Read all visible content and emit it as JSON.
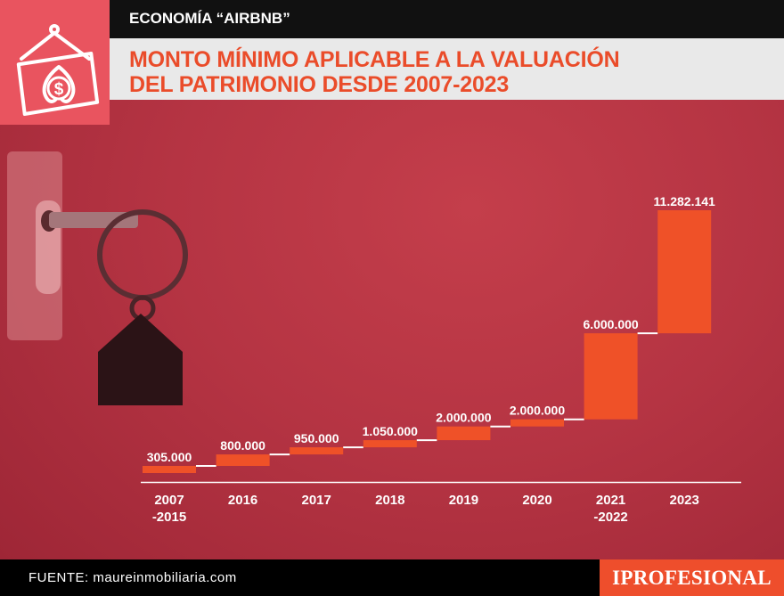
{
  "header": {
    "kicker": "ECONOMÍA “AIRBNB”",
    "title_line1": "MONTO MÍNIMO APLICABLE A LA VALUACIÓN",
    "title_line2": "DEL PATRIMONIO DESDE 2007-2023"
  },
  "footer": {
    "source": "FUENTE: maureinmobiliaria.com",
    "brand": "IPROFESIONAL"
  },
  "icons": {
    "badge": "house-dollar-icon",
    "illustration": "key-house-keychain-icon"
  },
  "colors": {
    "bar": "#ef5128",
    "title": "#ea4c2a",
    "background": "#b53443",
    "brand": "#ee4e2c"
  },
  "chart_data": {
    "type": "bar",
    "subtype": "waterfall",
    "categories": [
      "2007\n-2015",
      "2016",
      "2017",
      "2018",
      "2019",
      "2020",
      "2021\n-2022",
      "2023"
    ],
    "values": [
      305000,
      800000,
      950000,
      1050000,
      2000000,
      2000000,
      6000000,
      11282141
    ],
    "value_labels": [
      "305.000",
      "800.000",
      "950.000",
      "1.050.000",
      "2.000.000",
      "2.000.000",
      "6.000.000",
      "11.282.141"
    ],
    "title": "MONTO MÍNIMO APLICABLE A LA VALUACIÓN DEL PATRIMONIO DESDE 2007-2023",
    "xlabel": "",
    "ylabel": "",
    "ylim": [
      0,
      11282141
    ]
  }
}
